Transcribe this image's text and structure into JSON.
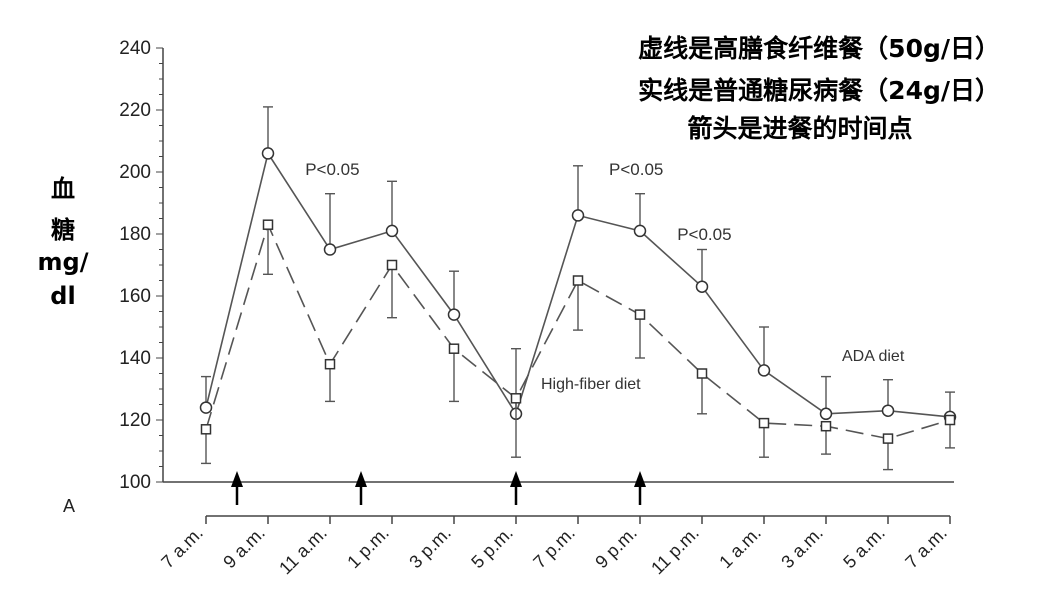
{
  "chart_data": {
    "type": "line",
    "title": "",
    "panel_label": "A",
    "ylabel_lines": [
      "血",
      "糖",
      "mg/",
      "dl"
    ],
    "ylim": [
      100,
      240
    ],
    "yticks": [
      100,
      120,
      140,
      160,
      180,
      200,
      220,
      240
    ],
    "x": [
      "7 a.m.",
      "9 a.m.",
      "11 a.m.",
      "1 p.m.",
      "3 p.m.",
      "5 p.m.",
      "7 p.m.",
      "9 p.m.",
      "11 p.m.",
      "1 a.m.",
      "3 a.m.",
      "5 a.m.",
      "7 a.m."
    ],
    "series": [
      {
        "name": "ADA diet",
        "style": "solid",
        "marker": "circle",
        "values": [
          124,
          206,
          175,
          181,
          154,
          122,
          186,
          181,
          163,
          136,
          122,
          123,
          121
        ],
        "error_upper": [
          134,
          221,
          193,
          197,
          168,
          143,
          202,
          193,
          175,
          150,
          134,
          133,
          129
        ]
      },
      {
        "name": "High-fiber diet",
        "style": "dashed",
        "marker": "square",
        "values": [
          117,
          183,
          138,
          170,
          143,
          127,
          165,
          154,
          135,
          119,
          118,
          114,
          120
        ],
        "error_lower": [
          106,
          167,
          126,
          153,
          126,
          108,
          149,
          140,
          122,
          108,
          109,
          104,
          111
        ]
      }
    ],
    "meal_arrows_x": [
      0.5,
      2.5,
      5,
      7
    ],
    "annotations": [
      {
        "text": "P<0.05",
        "x": 1.6,
        "y": 201
      },
      {
        "text": "P<0.05",
        "x": 6.5,
        "y": 201
      },
      {
        "text": "P<0.05",
        "x": 7.6,
        "y": 180
      }
    ],
    "notes": [
      "虚线是高膳食纤维餐（50g/日）",
      "实线是普通糖尿病餐（24g/日）",
      "箭头是进餐的时间点"
    ],
    "colors": {
      "line": "#555555",
      "text": "#000000"
    }
  }
}
